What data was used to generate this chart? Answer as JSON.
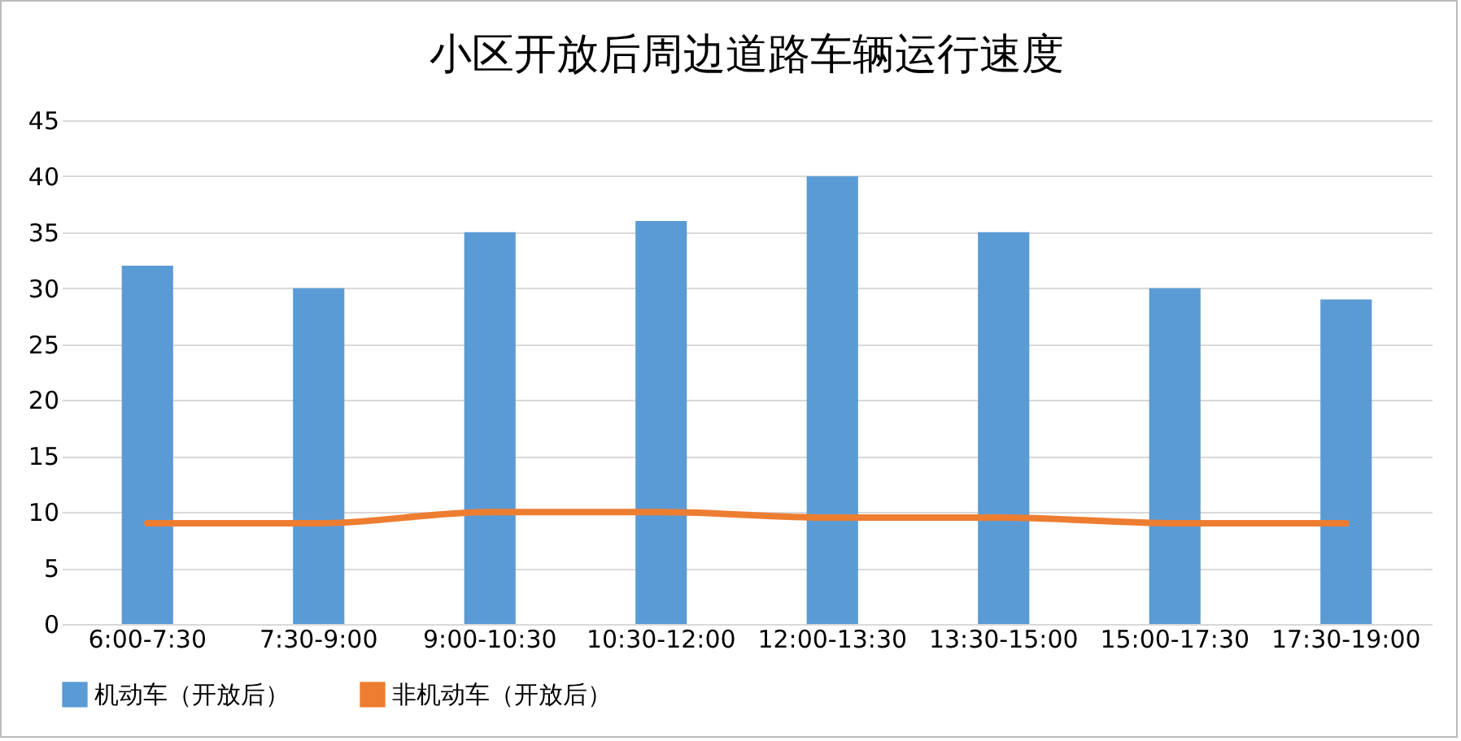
{
  "chart_data": {
    "type": "bar",
    "title": "小区开放后周边道路车辆运行速度",
    "categories": [
      "6:00-7:30",
      "7:30-9:00",
      "9:00-10:30",
      "10:30-12:00",
      "12:00-13:30",
      "13:30-15:00",
      "15:00-17:30",
      "17:30-19:00"
    ],
    "series": [
      {
        "name": "机动车（开放后）",
        "color": "#5b9bd5",
        "values": [
          32,
          30,
          35,
          36,
          40,
          35,
          30,
          29
        ]
      },
      {
        "name": "非机动车（开放后）",
        "type": "line",
        "color": "#ed7d31",
        "values": [
          9,
          9,
          10,
          10,
          9.5,
          9.5,
          9,
          9
        ]
      }
    ],
    "ylim": [
      0,
      45
    ],
    "yticks": [
      0,
      5,
      10,
      15,
      20,
      25,
      30,
      35,
      40,
      45
    ],
    "grid": "y",
    "legend": "bottom",
    "marker": "none"
  }
}
